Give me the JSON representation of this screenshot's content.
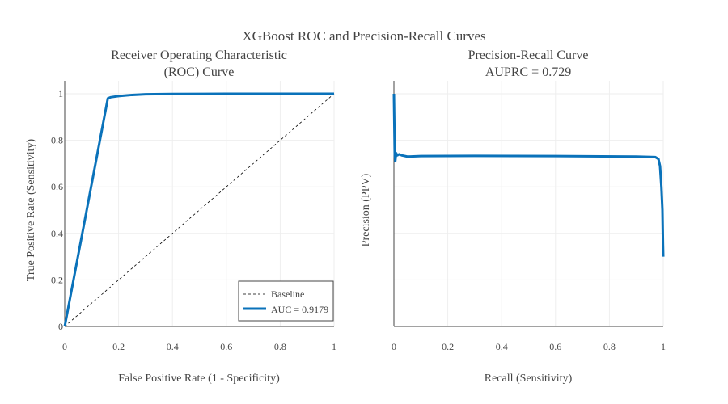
{
  "figure": {
    "title": "XGBoost ROC and Precision-Recall Curves"
  },
  "colors": {
    "curve": "#0a72ba",
    "baseline": "#000000",
    "axis": "#444444",
    "grid": "#eeeeee",
    "legend_border": "#444444"
  },
  "chart_data": [
    {
      "type": "line",
      "title_lines": [
        "Receiver Operating Characteristic",
        "(ROC) Curve"
      ],
      "xlabel": "False Positive Rate (1 - Specificity)",
      "ylabel": "True Positive Rate (Sensitivity)",
      "xlim": [
        0,
        1
      ],
      "ylim": [
        0,
        1
      ],
      "xticks": [
        0,
        0.2,
        0.4,
        0.6,
        0.8,
        1
      ],
      "xtick_labels": [
        "0",
        "0.2",
        "0.4",
        "0.6",
        "0.8",
        "1"
      ],
      "yticks": [
        0,
        0.2,
        0.4,
        0.6,
        0.8,
        1
      ],
      "ytick_labels": [
        "0",
        "0.2",
        "0.4",
        "0.6",
        "0.8",
        "1"
      ],
      "grid": true,
      "legend_position": "bottom-right",
      "series": [
        {
          "name": "Baseline",
          "style": "dashed",
          "x": [
            0,
            1
          ],
          "y": [
            0,
            1
          ]
        },
        {
          "name": "AUC = 0.9179",
          "style": "solid",
          "x": [
            0,
            0.16,
            0.17,
            0.2,
            0.25,
            0.3,
            0.4,
            0.6,
            0.8,
            1
          ],
          "y": [
            0,
            0.98,
            0.985,
            0.99,
            0.995,
            0.998,
            0.999,
            1,
            1,
            1
          ]
        }
      ]
    },
    {
      "type": "line",
      "title_lines": [
        "Precision-Recall Curve",
        "AUPRC = 0.729"
      ],
      "xlabel": "Recall (Sensitivity)",
      "ylabel": "Precision (PPV)",
      "xlim": [
        0,
        1
      ],
      "ylim": [
        0,
        1
      ],
      "xticks": [
        0,
        0.2,
        0.4,
        0.6,
        0.8,
        1
      ],
      "xtick_labels": [
        "0",
        "0.2",
        "0.4",
        "0.6",
        "0.8",
        "1"
      ],
      "yticks": [
        0.2,
        0.4,
        0.6,
        0.8,
        1
      ],
      "ytick_labels": [],
      "grid": true,
      "series": [
        {
          "name": "",
          "style": "solid",
          "x": [
            0,
            0.003,
            0.005,
            0.008,
            0.012,
            0.02,
            0.03,
            0.05,
            0.1,
            0.3,
            0.6,
            0.9,
            0.97,
            0.982,
            0.988,
            0.993,
            0.997,
            0.999,
            1.0
          ],
          "y": [
            1.0,
            0.74,
            0.71,
            0.745,
            0.735,
            0.74,
            0.735,
            0.73,
            0.732,
            0.733,
            0.732,
            0.73,
            0.728,
            0.72,
            0.69,
            0.6,
            0.5,
            0.35,
            0.3
          ]
        }
      ]
    }
  ]
}
